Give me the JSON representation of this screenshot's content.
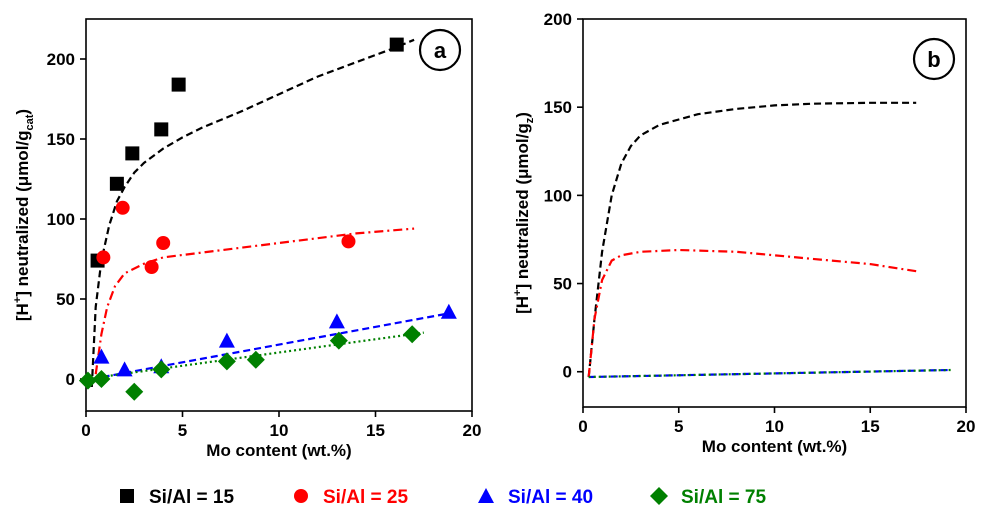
{
  "legend": [
    {
      "label": "Si/Al = 15",
      "color": "#000000",
      "marker": "square"
    },
    {
      "label": "Si/Al = 25",
      "color": "#ff0000",
      "marker": "circle"
    },
    {
      "label": "Si/Al = 40",
      "color": "#0000ff",
      "marker": "triangle"
    },
    {
      "label": "Si/Al = 75",
      "color": "#008000",
      "marker": "diamond"
    }
  ],
  "chart_data": [
    {
      "type": "scatter",
      "panel_label": "a",
      "xlabel": "Mo content (wt.%)",
      "ylabel": {
        "main": "[H",
        "sup": "+",
        "mid": "] neutralized (μmol/g",
        "sub": "cat",
        "end": ")"
      },
      "xlim": [
        0,
        20
      ],
      "ylim": [
        -20,
        225
      ],
      "xticks": [
        0,
        5,
        10,
        15,
        20
      ],
      "yticks": [
        0,
        50,
        100,
        150,
        200
      ],
      "series": [
        {
          "name": "Si/Al = 15",
          "color": "#000000",
          "marker": "square",
          "points": [
            [
              0.6,
              74
            ],
            [
              1.6,
              122
            ],
            [
              2.4,
              141
            ],
            [
              3.9,
              156
            ],
            [
              4.8,
              184
            ],
            [
              16.1,
              209
            ]
          ],
          "fit": {
            "style": "dash",
            "points": [
              [
                0.3,
                -5
              ],
              [
                0.5,
                45
              ],
              [
                0.8,
                74
              ],
              [
                1.2,
                96
              ],
              [
                1.6,
                111
              ],
              [
                2,
                120
              ],
              [
                2.5,
                129
              ],
              [
                3,
                135
              ],
              [
                4,
                144
              ],
              [
                5,
                151
              ],
              [
                6,
                157
              ],
              [
                8,
                167
              ],
              [
                10,
                178
              ],
              [
                12,
                189
              ],
              [
                14,
                198
              ],
              [
                16,
                207
              ],
              [
                17,
                212
              ]
            ]
          }
        },
        {
          "name": "Si/Al = 25",
          "color": "#ff0000",
          "marker": "circle",
          "points": [
            [
              0.9,
              76
            ],
            [
              1.9,
              107
            ],
            [
              3.4,
              70
            ],
            [
              4.0,
              85
            ],
            [
              13.6,
              86
            ]
          ],
          "fit": {
            "style": "dashdot",
            "points": [
              [
                0.5,
                3
              ],
              [
                0.8,
                28
              ],
              [
                1.1,
                45
              ],
              [
                1.5,
                58
              ],
              [
                2,
                66
              ],
              [
                3,
                72
              ],
              [
                4,
                76
              ],
              [
                6,
                79
              ],
              [
                8,
                82
              ],
              [
                10,
                85
              ],
              [
                12,
                88
              ],
              [
                14,
                91
              ],
              [
                17,
                94
              ]
            ]
          }
        },
        {
          "name": "Si/Al = 40",
          "color": "#0000ff",
          "marker": "triangle",
          "points": [
            [
              0.8,
              14
            ],
            [
              2.0,
              6
            ],
            [
              3.9,
              8
            ],
            [
              7.3,
              24
            ],
            [
              13.0,
              36
            ],
            [
              18.8,
              42
            ]
          ],
          "fit": {
            "style": "dash",
            "points": [
              [
                0.3,
                0
              ],
              [
                18.8,
                41
              ]
            ]
          }
        },
        {
          "name": "Si/Al = 75",
          "color": "#008000",
          "marker": "diamond",
          "points": [
            [
              0.1,
              -1
            ],
            [
              0.8,
              0
            ],
            [
              2.5,
              -8
            ],
            [
              3.9,
              6
            ],
            [
              7.3,
              11
            ],
            [
              8.8,
              12
            ],
            [
              13.1,
              24
            ],
            [
              16.9,
              28
            ]
          ],
          "fit": {
            "style": "dot",
            "points": [
              [
                0,
                0
              ],
              [
                17.5,
                29
              ]
            ]
          }
        }
      ]
    },
    {
      "type": "line",
      "panel_label": "b",
      "xlabel": "Mo content (wt.%)",
      "ylabel": {
        "main": "[H",
        "sup": "+",
        "mid": "] neutralized (μmol/g",
        "sub": "z",
        "end": ")"
      },
      "xlim": [
        0,
        20
      ],
      "ylim": [
        -20,
        200
      ],
      "xticks": [
        0,
        5,
        10,
        15,
        20
      ],
      "yticks": [
        0,
        50,
        100,
        150,
        200
      ],
      "series": [
        {
          "name": "Si/Al = 15",
          "color": "#000000",
          "style": "dash",
          "points": [
            [
              0.3,
              -3
            ],
            [
              0.6,
              30
            ],
            [
              1,
              68
            ],
            [
              1.5,
              100
            ],
            [
              2,
              118
            ],
            [
              2.5,
              128
            ],
            [
              3,
              134
            ],
            [
              4,
              140
            ],
            [
              5,
              143
            ],
            [
              6,
              146
            ],
            [
              8,
              149
            ],
            [
              10,
              151
            ],
            [
              12,
              152
            ],
            [
              15,
              152.5
            ],
            [
              17.4,
              152.5
            ]
          ]
        },
        {
          "name": "Si/Al = 25",
          "color": "#ff0000",
          "style": "dashdot",
          "points": [
            [
              0.3,
              -3
            ],
            [
              0.6,
              30
            ],
            [
              1,
              52
            ],
            [
              1.5,
              63
            ],
            [
              2,
              66
            ],
            [
              3,
              68
            ],
            [
              5,
              69
            ],
            [
              8,
              68
            ],
            [
              10,
              66
            ],
            [
              12,
              64
            ],
            [
              15,
              61
            ],
            [
              17.4,
              57
            ]
          ]
        },
        {
          "name": "Si/Al = 40",
          "color": "#0000ff",
          "style": "dash",
          "points": [
            [
              0.3,
              -3
            ],
            [
              19.2,
              1
            ]
          ]
        },
        {
          "name": "Si/Al = 75",
          "color": "#008000",
          "style": "dot",
          "points": [
            [
              0.3,
              -3
            ],
            [
              19.2,
              1
            ]
          ]
        }
      ]
    }
  ]
}
